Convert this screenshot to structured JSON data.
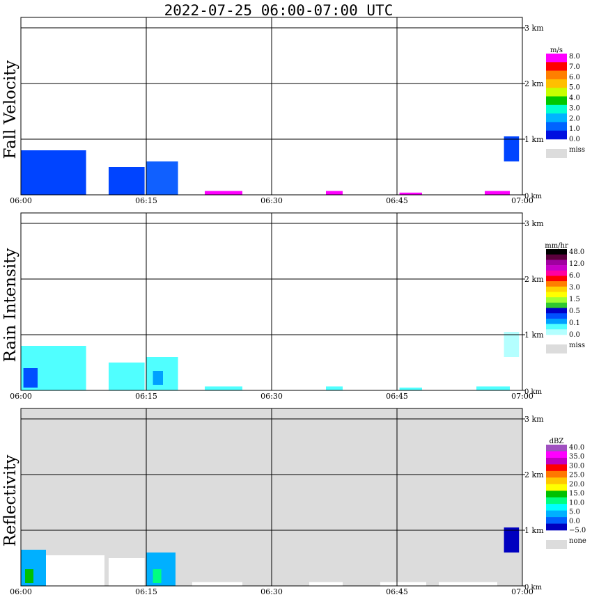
{
  "title": "2022-07-25   06:00-07:00 UTC",
  "x_ticks": [
    "06:00",
    "06:15",
    "06:30",
    "06:45",
    "07:00"
  ],
  "y_ticks": [
    "1 km",
    "2 km",
    "3 km",
    "0 km"
  ],
  "colors": {
    "background": "#ffffff",
    "grid": "#000000",
    "missing": "#dcdcdc"
  },
  "panels": [
    {
      "id": "fall-velocity",
      "ylabel": "Fall Velocity",
      "unit": "m/s",
      "legend": [
        {
          "label": "8.0",
          "color": "#ff00ff"
        },
        {
          "label": "7.0",
          "color": "#ff0000"
        },
        {
          "label": "6.0",
          "color": "#ff7f00"
        },
        {
          "label": "5.0",
          "color": "#ffbf00"
        },
        {
          "label": "4.0",
          "color": "#c8ff00"
        },
        {
          "label": "3.0",
          "color": "#00c800"
        },
        {
          "label": "2.0",
          "color": "#00ffd0"
        },
        {
          "label": "1.0",
          "color": "#00b4ff"
        },
        {
          "label": "0.0",
          "color": "#0064ff"
        },
        {
          "label": "",
          "color": "#0010e0"
        }
      ],
      "legend_labels": [
        "8.0",
        "7.0",
        "6.0",
        "5.0",
        "4.0",
        "3.0",
        "2.0",
        "1.0",
        "0.0"
      ],
      "miss_label": "miss",
      "bg": "#ffffff"
    },
    {
      "id": "rain-intensity",
      "ylabel": "Rain Intensity",
      "unit": "mm/hr",
      "legend": [
        {
          "color": "#000000"
        },
        {
          "color": "#5a003c"
        },
        {
          "color": "#a000a0"
        },
        {
          "color": "#c800c8"
        },
        {
          "color": "#ff00a0"
        },
        {
          "color": "#ff0000"
        },
        {
          "color": "#ff7f00"
        },
        {
          "color": "#ffd200"
        },
        {
          "color": "#ffff00"
        },
        {
          "color": "#a0ff30"
        },
        {
          "color": "#30c830"
        },
        {
          "color": "#0000c8"
        },
        {
          "color": "#0050ff"
        },
        {
          "color": "#00a0ff"
        },
        {
          "color": "#50ffff"
        },
        {
          "color": "#b4ffff"
        }
      ],
      "legend_labels": [
        "48.0",
        "12.0",
        "6.0",
        "3.0",
        "1.5",
        "0.5",
        "0.1",
        "0.0"
      ],
      "miss_label": "miss",
      "bg": "#ffffff"
    },
    {
      "id": "reflectivity",
      "ylabel": "Reflectivity",
      "unit": "dBZ",
      "legend": [
        {
          "color": "#a050c0"
        },
        {
          "color": "#ff00ff"
        },
        {
          "color": "#c000c0"
        },
        {
          "color": "#ff0000"
        },
        {
          "color": "#ff7800"
        },
        {
          "color": "#ffc800"
        },
        {
          "color": "#ffff00"
        },
        {
          "color": "#00c000"
        },
        {
          "color": "#00ff80"
        },
        {
          "color": "#00ffff"
        },
        {
          "color": "#00b0ff"
        },
        {
          "color": "#0060ff"
        },
        {
          "color": "#0000c0"
        }
      ],
      "legend_labels": [
        "40.0",
        "35.0",
        "30.0",
        "25.0",
        "20.0",
        "15.0",
        "10.0",
        "5.0",
        "0.0",
        "−5.0"
      ],
      "miss_label": "none",
      "bg": "#dcdcdc"
    }
  ],
  "chart_data": {
    "type": "heatmap",
    "x_range": [
      "06:00",
      "07:00"
    ],
    "y_range_km": [
      0,
      3.4
    ],
    "echo_regions": [
      {
        "panel": "fall-velocity",
        "t_start_min": 0.0,
        "t_end_min": 7.8,
        "h_top_km": 0.8,
        "h_bottom_km": 0.0,
        "color": "#0044ff"
      },
      {
        "panel": "fall-velocity",
        "t_start_min": 10.5,
        "t_end_min": 14.8,
        "h_top_km": 0.5,
        "h_bottom_km": 0.0,
        "color": "#0044ff"
      },
      {
        "panel": "fall-velocity",
        "t_start_min": 15.0,
        "t_end_min": 18.8,
        "h_top_km": 0.6,
        "h_bottom_km": 0.0,
        "color": "#1060ff"
      },
      {
        "panel": "fall-velocity",
        "t_start_min": 22.0,
        "t_end_min": 26.5,
        "h_top_km": 0.07,
        "h_bottom_km": 0.0,
        "color": "#ff00ff"
      },
      {
        "panel": "fall-velocity",
        "t_start_min": 36.5,
        "t_end_min": 38.5,
        "h_top_km": 0.07,
        "h_bottom_km": 0.0,
        "color": "#ff00ff"
      },
      {
        "panel": "fall-velocity",
        "t_start_min": 45.3,
        "t_end_min": 48.0,
        "h_top_km": 0.04,
        "h_bottom_km": 0.0,
        "color": "#ff00ff"
      },
      {
        "panel": "fall-velocity",
        "t_start_min": 55.5,
        "t_end_min": 58.5,
        "h_top_km": 0.07,
        "h_bottom_km": 0.0,
        "color": "#ff00ff"
      },
      {
        "panel": "fall-velocity",
        "t_start_min": 57.8,
        "t_end_min": 59.6,
        "h_top_km": 1.05,
        "h_bottom_km": 0.6,
        "color": "#0044ff"
      },
      {
        "panel": "rain-intensity",
        "t_start_min": 0.0,
        "t_end_min": 7.8,
        "h_top_km": 0.8,
        "h_bottom_km": 0.0,
        "color": "#50ffff"
      },
      {
        "panel": "rain-intensity",
        "t_start_min": 0.3,
        "t_end_min": 2.0,
        "h_top_km": 0.4,
        "h_bottom_km": 0.05,
        "color": "#0050ff"
      },
      {
        "panel": "rain-intensity",
        "t_start_min": 10.5,
        "t_end_min": 14.8,
        "h_top_km": 0.5,
        "h_bottom_km": 0.0,
        "color": "#50ffff"
      },
      {
        "panel": "rain-intensity",
        "t_start_min": 15.0,
        "t_end_min": 18.8,
        "h_top_km": 0.6,
        "h_bottom_km": 0.0,
        "color": "#50ffff"
      },
      {
        "panel": "rain-intensity",
        "t_start_min": 15.8,
        "t_end_min": 17.0,
        "h_top_km": 0.35,
        "h_bottom_km": 0.1,
        "color": "#00a0ff"
      },
      {
        "panel": "rain-intensity",
        "t_start_min": 22.0,
        "t_end_min": 26.5,
        "h_top_km": 0.07,
        "h_bottom_km": 0.0,
        "color": "#50ffff"
      },
      {
        "panel": "rain-intensity",
        "t_start_min": 36.5,
        "t_end_min": 38.5,
        "h_top_km": 0.07,
        "h_bottom_km": 0.0,
        "color": "#50ffff"
      },
      {
        "panel": "rain-intensity",
        "t_start_min": 45.3,
        "t_end_min": 48.0,
        "h_top_km": 0.05,
        "h_bottom_km": 0.0,
        "color": "#50ffff"
      },
      {
        "panel": "rain-intensity",
        "t_start_min": 54.5,
        "t_end_min": 58.5,
        "h_top_km": 0.07,
        "h_bottom_km": 0.0,
        "color": "#50ffff"
      },
      {
        "panel": "rain-intensity",
        "t_start_min": 57.8,
        "t_end_min": 59.6,
        "h_top_km": 1.05,
        "h_bottom_km": 0.6,
        "color": "#b4ffff"
      },
      {
        "panel": "reflectivity",
        "t_start_min": 0.0,
        "t_end_min": 10.0,
        "h_top_km": 0.55,
        "h_bottom_km": 0.0,
        "color": "#ffffff"
      },
      {
        "panel": "reflectivity",
        "t_start_min": 0.0,
        "t_end_min": 3.0,
        "h_top_km": 0.65,
        "h_bottom_km": 0.0,
        "color": "#00b0ff"
      },
      {
        "panel": "reflectivity",
        "t_start_min": 0.5,
        "t_end_min": 1.5,
        "h_top_km": 0.3,
        "h_bottom_km": 0.05,
        "color": "#00c000"
      },
      {
        "panel": "reflectivity",
        "t_start_min": 10.5,
        "t_end_min": 14.8,
        "h_top_km": 0.5,
        "h_bottom_km": 0.0,
        "color": "#ffffff"
      },
      {
        "panel": "reflectivity",
        "t_start_min": 15.0,
        "t_end_min": 18.5,
        "h_top_km": 0.6,
        "h_bottom_km": 0.0,
        "color": "#00b0ff"
      },
      {
        "panel": "reflectivity",
        "t_start_min": 15.8,
        "t_end_min": 16.8,
        "h_top_km": 0.3,
        "h_bottom_km": 0.05,
        "color": "#00ff80"
      },
      {
        "panel": "reflectivity",
        "t_start_min": 20.5,
        "t_end_min": 26.5,
        "h_top_km": 0.07,
        "h_bottom_km": 0.0,
        "color": "#ffffff"
      },
      {
        "panel": "reflectivity",
        "t_start_min": 34.5,
        "t_end_min": 38.5,
        "h_top_km": 0.07,
        "h_bottom_km": 0.0,
        "color": "#ffffff"
      },
      {
        "panel": "reflectivity",
        "t_start_min": 43.0,
        "t_end_min": 48.5,
        "h_top_km": 0.07,
        "h_bottom_km": 0.0,
        "color": "#ffffff"
      },
      {
        "panel": "reflectivity",
        "t_start_min": 50.0,
        "t_end_min": 57.0,
        "h_top_km": 0.07,
        "h_bottom_km": 0.0,
        "color": "#ffffff"
      },
      {
        "panel": "reflectivity",
        "t_start_min": 57.8,
        "t_end_min": 59.6,
        "h_top_km": 1.05,
        "h_bottom_km": 0.6,
        "color": "#0000c0"
      }
    ]
  }
}
